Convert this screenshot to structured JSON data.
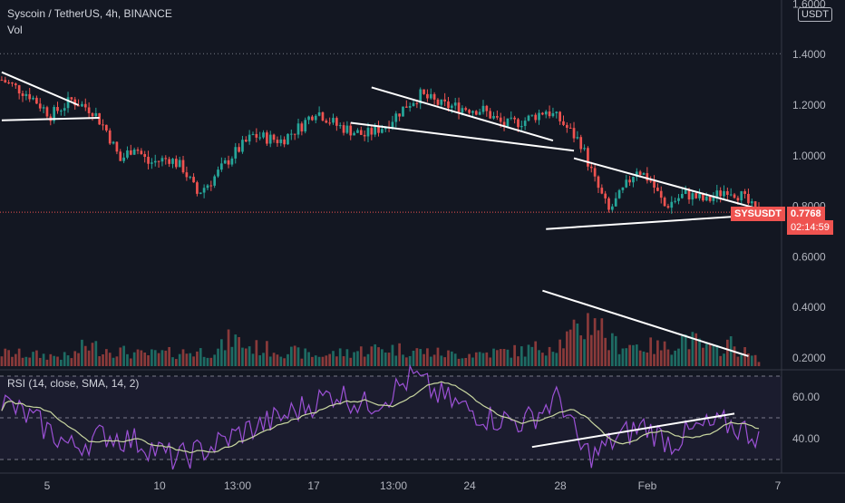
{
  "header": {
    "symbol_line": "Syscoin / TetherUS, 4h, BINANCE",
    "vol_label": "Vol",
    "currency_button": "USDT"
  },
  "price_tag": {
    "symbol": "SYSUSDT",
    "price": "0.7768",
    "countdown": "02:14:59"
  },
  "colors": {
    "background": "#131722",
    "up": "#26a69a",
    "down": "#ef5350",
    "vol_up": "#1e6b63",
    "vol_down": "#8a3a3a",
    "rsi_line": "#9c51d6",
    "rsi_ma": "#c8d6a0",
    "trendline": "#ffffff",
    "grid": "#363a45",
    "price_line": "#ef5350"
  },
  "chart_data": {
    "type": "candlestick",
    "title": "Syscoin / TetherUS, 4h, BINANCE",
    "price_axis": {
      "ticks": [
        "1.6000",
        "1.4000",
        "1.2000",
        "1.0000",
        "0.8000",
        "0.6000",
        "0.4000",
        "0.2000"
      ],
      "values": [
        1.6,
        1.4,
        1.2,
        1.0,
        0.8,
        0.6,
        0.4,
        0.2
      ]
    },
    "rsi_panel": {
      "label": "RSI (14, close, SMA, 14, 2)",
      "ticks": [
        "60.00",
        "40.00"
      ],
      "values": [
        60,
        40
      ],
      "bands": [
        70,
        50,
        30
      ]
    },
    "time_axis": [
      "5",
      "10",
      "13:00",
      "17",
      "13:00",
      "24",
      "28",
      "Feb",
      "7"
    ],
    "last_price": 0.7768,
    "price_waypoints": [
      [
        0,
        1.3
      ],
      [
        8,
        1.24
      ],
      [
        14,
        1.16
      ],
      [
        20,
        1.22
      ],
      [
        26,
        1.18
      ],
      [
        30,
        1.1
      ],
      [
        34,
        0.98
      ],
      [
        38,
        1.04
      ],
      [
        42,
        0.97
      ],
      [
        48,
        0.99
      ],
      [
        52,
        0.95
      ],
      [
        56,
        0.85
      ],
      [
        60,
        0.9
      ],
      [
        66,
        1.0
      ],
      [
        72,
        1.08
      ],
      [
        80,
        1.06
      ],
      [
        86,
        1.12
      ],
      [
        90,
        1.18
      ],
      [
        96,
        1.12
      ],
      [
        104,
        1.08
      ],
      [
        110,
        1.12
      ],
      [
        116,
        1.2
      ],
      [
        120,
        1.24
      ],
      [
        126,
        1.2
      ],
      [
        132,
        1.19
      ],
      [
        138,
        1.18
      ],
      [
        144,
        1.12
      ],
      [
        150,
        1.14
      ],
      [
        156,
        1.18
      ],
      [
        160,
        1.14
      ],
      [
        166,
        1.05
      ],
      [
        170,
        0.9
      ],
      [
        174,
        0.78
      ],
      [
        178,
        0.86
      ],
      [
        182,
        0.95
      ],
      [
        186,
        0.9
      ],
      [
        190,
        0.8
      ],
      [
        196,
        0.85
      ],
      [
        202,
        0.82
      ],
      [
        208,
        0.87
      ],
      [
        212,
        0.84
      ],
      [
        216,
        0.78
      ]
    ],
    "volume_waypoints": [
      [
        0,
        0.25
      ],
      [
        20,
        0.18
      ],
      [
        24,
        0.4
      ],
      [
        40,
        0.22
      ],
      [
        62,
        0.3
      ],
      [
        66,
        0.55
      ],
      [
        70,
        0.38
      ],
      [
        86,
        0.25
      ],
      [
        90,
        0.2
      ],
      [
        110,
        0.35
      ],
      [
        130,
        0.22
      ],
      [
        150,
        0.3
      ],
      [
        160,
        0.45
      ],
      [
        166,
        0.7
      ],
      [
        170,
        1.0
      ],
      [
        174,
        0.45
      ],
      [
        190,
        0.35
      ],
      [
        196,
        0.55
      ],
      [
        204,
        0.28
      ],
      [
        208,
        0.45
      ],
      [
        216,
        0.15
      ]
    ],
    "rsi_waypoints": [
      [
        0,
        58
      ],
      [
        10,
        48
      ],
      [
        20,
        36
      ],
      [
        30,
        42
      ],
      [
        40,
        38
      ],
      [
        50,
        30
      ],
      [
        60,
        36
      ],
      [
        70,
        44
      ],
      [
        80,
        50
      ],
      [
        90,
        58
      ],
      [
        96,
        62
      ],
      [
        104,
        56
      ],
      [
        110,
        60
      ],
      [
        118,
        70
      ],
      [
        124,
        62
      ],
      [
        132,
        55
      ],
      [
        140,
        50
      ],
      [
        150,
        48
      ],
      [
        160,
        60
      ],
      [
        166,
        35
      ],
      [
        170,
        32
      ],
      [
        176,
        40
      ],
      [
        184,
        46
      ],
      [
        192,
        38
      ],
      [
        200,
        45
      ],
      [
        208,
        47
      ],
      [
        216,
        42
      ]
    ],
    "trendlines": [
      {
        "panel": "price",
        "points": [
          [
            0,
            1.33
          ],
          [
            22,
            1.2
          ]
        ]
      },
      {
        "panel": "price",
        "points": [
          [
            0,
            1.14
          ],
          [
            28,
            1.15
          ]
        ]
      },
      {
        "panel": "price",
        "points": [
          [
            106,
            1.27
          ],
          [
            158,
            1.06
          ]
        ]
      },
      {
        "panel": "price",
        "points": [
          [
            100,
            1.13
          ],
          [
            164,
            1.02
          ]
        ]
      },
      {
        "panel": "price",
        "points": [
          [
            164,
            0.99
          ],
          [
            222,
            0.77
          ]
        ]
      },
      {
        "panel": "price",
        "points": [
          [
            156,
            0.71
          ],
          [
            222,
            0.77
          ]
        ]
      },
      {
        "panel": "volume",
        "points": [
          [
            155,
            0.98
          ],
          [
            214,
            0.13
          ]
        ]
      },
      {
        "panel": "rsi",
        "points": [
          [
            152,
            36
          ],
          [
            210,
            52
          ]
        ]
      }
    ]
  }
}
